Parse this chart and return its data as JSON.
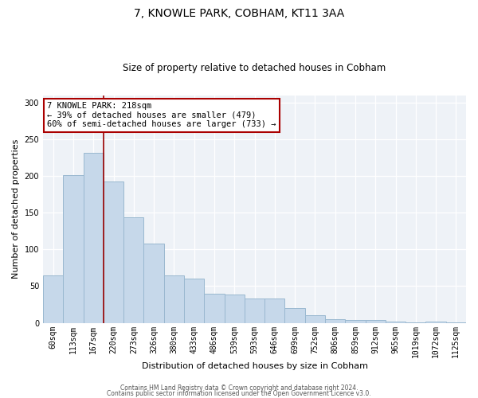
{
  "title1": "7, KNOWLE PARK, COBHAM, KT11 3AA",
  "title2": "Size of property relative to detached houses in Cobham",
  "xlabel": "Distribution of detached houses by size in Cobham",
  "ylabel": "Number of detached properties",
  "bar_color": "#c6d8ea",
  "bar_edge_color": "#9ab8d0",
  "categories": [
    "60sqm",
    "113sqm",
    "167sqm",
    "220sqm",
    "273sqm",
    "326sqm",
    "380sqm",
    "433sqm",
    "486sqm",
    "539sqm",
    "593sqm",
    "646sqm",
    "699sqm",
    "752sqm",
    "806sqm",
    "859sqm",
    "912sqm",
    "965sqm",
    "1019sqm",
    "1072sqm",
    "1125sqm"
  ],
  "values": [
    65,
    201,
    232,
    192,
    144,
    108,
    65,
    60,
    40,
    39,
    33,
    33,
    20,
    10,
    5,
    4,
    4,
    2,
    1,
    2,
    1
  ],
  "annotation_title": "7 KNOWLE PARK: 218sqm",
  "annotation_line1": "← 39% of detached houses are smaller (479)",
  "annotation_line2": "60% of semi-detached houses are larger (733) →",
  "vline_position": 2.5,
  "footer1": "Contains HM Land Registry data © Crown copyright and database right 2024.",
  "footer2": "Contains public sector information licensed under the Open Government Licence v3.0.",
  "ylim": [
    0,
    310
  ],
  "yticks": [
    0,
    50,
    100,
    150,
    200,
    250,
    300
  ],
  "background_color": "#eef2f7",
  "grid_color": "#ffffff",
  "title1_fontsize": 10,
  "title2_fontsize": 8.5,
  "xlabel_fontsize": 8,
  "ylabel_fontsize": 8,
  "tick_fontsize": 7,
  "ann_fontsize": 7.5,
  "footer_fontsize": 5.5
}
